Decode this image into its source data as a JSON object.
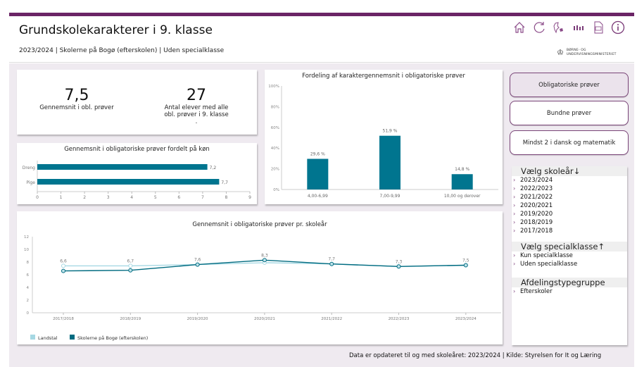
{
  "header": {
    "title": "Grundskolekarakterer i 9. klasse",
    "subtitle": "2023/2024 | Skolerne på Bogø (efterskolen) | Uden specialklasse",
    "icons": [
      "home-icon",
      "refresh-icon",
      "denmark-map-icon",
      "bar-chart-icon",
      "pdf-icon",
      "info-icon"
    ],
    "logo_line1": "BØRNE- OG",
    "logo_line2": "UNDERVISNINGSMINISTERIET"
  },
  "colors": {
    "accent": "#6b2466",
    "bar": "#00758f",
    "landstal": "#a6d8e3",
    "school": "#006b80"
  },
  "kpis": [
    {
      "value": "7,5",
      "label_lines": [
        "Gennemsnit i obl. prøver"
      ]
    },
    {
      "value": "27",
      "label_lines": [
        "Antal elever med alle",
        "obl. prøver i 9. klasse",
        "."
      ]
    }
  ],
  "buttons": [
    {
      "label": "Obligatoriske prøver",
      "active": true
    },
    {
      "label": "Bundne prøver",
      "active": false
    },
    {
      "label": "Mindst 2 i dansk og matematik",
      "active": false
    }
  ],
  "slicers": {
    "years": {
      "title": "Vælg skoleår↓",
      "items": [
        "2023/2024",
        "2022/2023",
        "2021/2022",
        "2020/2021",
        "2019/2020",
        "2018/2019",
        "2017/2018"
      ]
    },
    "special": {
      "title": "Vælg specialklasse↑",
      "items": [
        "Kun specialklasse",
        "Uden specialklasse"
      ]
    },
    "afdeling": {
      "title": "Afdelingstypegruppe",
      "items": [
        "Efterskoler"
      ]
    }
  },
  "footer": "Data er opdateret til og med skoleåret: 2023/2024 | Kilde: Styrelsen for It og Læring",
  "chart_data": [
    {
      "type": "bar",
      "orientation": "horizontal",
      "title": "Gennemsnit i obligatoriske prøver fordelt på køn",
      "categories": [
        "Dreng",
        "Pige"
      ],
      "values": [
        7.2,
        7.7
      ],
      "value_labels": [
        "7,2",
        "7,7"
      ],
      "xlim": [
        0,
        9
      ],
      "xticks": [
        "0",
        "1",
        "2",
        "3",
        "4",
        "5",
        "6",
        "7",
        "8",
        "9"
      ]
    },
    {
      "type": "bar",
      "title": "Fordeling af karaktergennemsnit i obligatoriske prøver",
      "categories": [
        "4,00-6,99",
        "7,00-9,99",
        "10,00 og derover"
      ],
      "values": [
        29.6,
        51.9,
        14.8
      ],
      "value_labels": [
        "29,6 %",
        "51,9 %",
        "14,8 %"
      ],
      "ylim": [
        0,
        100
      ],
      "yticks": [
        "0%",
        "20%",
        "40%",
        "60%",
        "80%",
        "100%"
      ]
    },
    {
      "type": "line",
      "title": "Gennemsnit i obligatoriske prøver pr. skoleår",
      "x": [
        "2017/2018",
        "2018/2019",
        "2019/2020",
        "2020/2021",
        "2021/2022",
        "2022/2023",
        "2023/2024"
      ],
      "series": [
        {
          "name": "Landstal",
          "values": [
            7.4,
            7.4,
            7.6,
            7.9,
            7.7,
            7.3,
            7.5
          ]
        },
        {
          "name": "Skolerne på Bogø (efterskolen)",
          "values": [
            6.6,
            6.7,
            7.6,
            8.3,
            7.7,
            7.3,
            7.5
          ],
          "labels": [
            "6,6",
            "6,7",
            "7,6",
            "8,3",
            "7,7",
            "7,3",
            "7,5"
          ]
        }
      ],
      "ylim": [
        0,
        12
      ],
      "yticks": [
        "0",
        "2",
        "4",
        "6",
        "8",
        "10",
        "12"
      ],
      "legend": "bottom-left"
    }
  ]
}
